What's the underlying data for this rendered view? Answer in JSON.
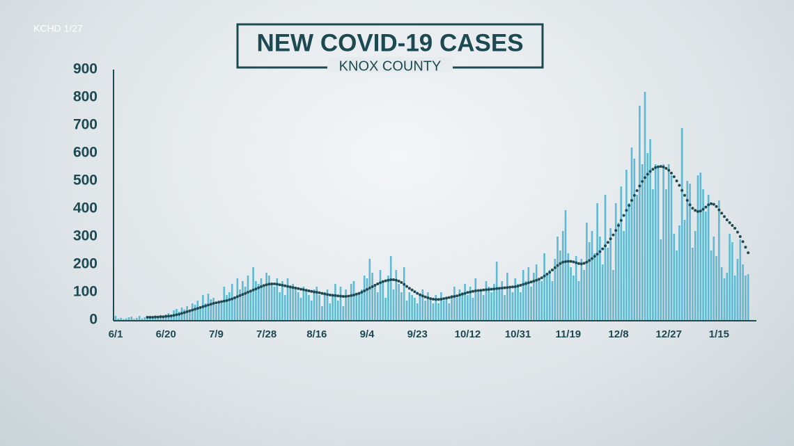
{
  "corner_label": "KCHD 1/27",
  "chart_data": {
    "type": "bar",
    "title": "NEW COVID-19 CASES",
    "subtitle": "KNOX COUNTY",
    "color": "#5fb9d2",
    "average_color": "#1d4a52",
    "ylim": [
      0,
      900
    ],
    "yticks": [
      0,
      100,
      200,
      300,
      400,
      500,
      600,
      700,
      800,
      900
    ],
    "categories": [
      "6/1",
      null,
      null,
      null,
      null,
      null,
      null,
      null,
      null,
      null,
      null,
      null,
      null,
      null,
      null,
      null,
      null,
      null,
      null,
      "6/20",
      null,
      null,
      null,
      null,
      null,
      null,
      null,
      null,
      null,
      null,
      null,
      null,
      null,
      null,
      null,
      null,
      null,
      null,
      "7/9",
      null,
      null,
      null,
      null,
      null,
      null,
      null,
      null,
      null,
      null,
      null,
      null,
      null,
      null,
      null,
      null,
      null,
      null,
      "7/28",
      null,
      null,
      null,
      null,
      null,
      null,
      null,
      null,
      null,
      null,
      null,
      null,
      null,
      null,
      null,
      null,
      null,
      null,
      "8/16",
      null,
      null,
      null,
      null,
      null,
      null,
      null,
      null,
      null,
      null,
      null,
      null,
      null,
      null,
      null,
      null,
      null,
      null,
      "9/4",
      null,
      null,
      null,
      null,
      null,
      null,
      null,
      null,
      null,
      null,
      null,
      null,
      null,
      null,
      null,
      null,
      null,
      null,
      "9/23",
      null,
      null,
      null,
      null,
      null,
      null,
      null,
      null,
      null,
      null,
      null,
      null,
      null,
      null,
      null,
      null,
      null,
      null,
      "10/12",
      null,
      null,
      null,
      null,
      null,
      null,
      null,
      null,
      null,
      null,
      null,
      null,
      null,
      null,
      null,
      null,
      null,
      null,
      "10/31",
      null,
      null,
      null,
      null,
      null,
      null,
      null,
      null,
      null,
      null,
      null,
      null,
      null,
      null,
      null,
      null,
      null,
      null,
      "11/19",
      null,
      null,
      null,
      null,
      null,
      null,
      null,
      null,
      null,
      null,
      null,
      null,
      null,
      null,
      null,
      null,
      null,
      null,
      "12/8",
      null,
      null,
      null,
      null,
      null,
      null,
      null,
      null,
      null,
      null,
      null,
      null,
      null,
      null,
      null,
      null,
      null,
      null,
      "12/27",
      null,
      null,
      null,
      null,
      null,
      null,
      null,
      null,
      null,
      null,
      null,
      null,
      null,
      null,
      null,
      null,
      null,
      null,
      "1/15",
      null,
      null,
      null,
      null,
      null,
      null,
      null,
      null,
      null,
      null,
      null
    ],
    "values": [
      15,
      5,
      8,
      3,
      6,
      10,
      12,
      4,
      8,
      15,
      6,
      10,
      14,
      8,
      12,
      16,
      10,
      18,
      12,
      20,
      25,
      15,
      35,
      40,
      30,
      45,
      38,
      50,
      30,
      60,
      55,
      70,
      45,
      90,
      60,
      95,
      75,
      80,
      55,
      70,
      60,
      120,
      90,
      100,
      130,
      80,
      150,
      110,
      140,
      120,
      160,
      100,
      190,
      140,
      130,
      150,
      120,
      170,
      160,
      130,
      120,
      150,
      100,
      140,
      90,
      150,
      120,
      130,
      110,
      100,
      80,
      120,
      110,
      90,
      70,
      110,
      120,
      90,
      50,
      100,
      110,
      60,
      90,
      130,
      70,
      120,
      50,
      110,
      80,
      130,
      140,
      90,
      100,
      110,
      160,
      150,
      220,
      170,
      130,
      100,
      180,
      140,
      80,
      160,
      230,
      110,
      180,
      130,
      100,
      190,
      70,
      100,
      90,
      80,
      60,
      90,
      110,
      70,
      100,
      80,
      60,
      90,
      60,
      100,
      70,
      80,
      60,
      90,
      120,
      80,
      110,
      100,
      130,
      90,
      120,
      80,
      150,
      100,
      110,
      90,
      140,
      120,
      100,
      130,
      210,
      110,
      140,
      90,
      170,
      120,
      100,
      150,
      130,
      100,
      180,
      140,
      190,
      120,
      170,
      200,
      150,
      140,
      240,
      160,
      180,
      140,
      220,
      300,
      250,
      320,
      395,
      240,
      190,
      160,
      230,
      140,
      220,
      180,
      350,
      280,
      320,
      240,
      420,
      300,
      200,
      450,
      260,
      330,
      180,
      420,
      350,
      480,
      320,
      540,
      420,
      620,
      580,
      450,
      770,
      560,
      820,
      600,
      650,
      470,
      560,
      550,
      290,
      560,
      470,
      560,
      520,
      310,
      250,
      340,
      690,
      360,
      500,
      490,
      260,
      320,
      520,
      530,
      470,
      390,
      450,
      250,
      300,
      230,
      430,
      190,
      150,
      170,
      310,
      280,
      160,
      220,
      290,
      200,
      160,
      165
    ],
    "moving_average": [
      null,
      null,
      null,
      null,
      null,
      null,
      null,
      null,
      null,
      null,
      null,
      null,
      10,
      10,
      10,
      11,
      11,
      12,
      12,
      13,
      14,
      15,
      17,
      19,
      21,
      24,
      27,
      30,
      33,
      36,
      39,
      42,
      45,
      48,
      51,
      54,
      57,
      60,
      62,
      64,
      66,
      68,
      70,
      73,
      76,
      80,
      84,
      88,
      92,
      96,
      100,
      104,
      108,
      112,
      116,
      120,
      124,
      127,
      129,
      130,
      130,
      129,
      127,
      125,
      123,
      121,
      119,
      117,
      115,
      113,
      111,
      109,
      107,
      105,
      103,
      101,
      100,
      98,
      96,
      94,
      92,
      90,
      89,
      88,
      87,
      86,
      85,
      85,
      86,
      88,
      90,
      93,
      96,
      100,
      105,
      110,
      115,
      120,
      125,
      130,
      134,
      138,
      141,
      143,
      145,
      145,
      143,
      140,
      135,
      128,
      121,
      114,
      108,
      102,
      96,
      91,
      87,
      83,
      80,
      77,
      75,
      74,
      74,
      75,
      77,
      79,
      81,
      83,
      85,
      87,
      90,
      93,
      96,
      99,
      101,
      103,
      105,
      106,
      107,
      108,
      109,
      110,
      111,
      112,
      113,
      114,
      115,
      116,
      117,
      118,
      119,
      120,
      122,
      125,
      128,
      131,
      134,
      137,
      140,
      143,
      147,
      152,
      158,
      165,
      172,
      180,
      188,
      196,
      203,
      208,
      210,
      211,
      211,
      209,
      206,
      203,
      202,
      204,
      208,
      214,
      221,
      229,
      237,
      246,
      256,
      267,
      279,
      292,
      306,
      322,
      340,
      358,
      376,
      394,
      412,
      430,
      448,
      465,
      482,
      498,
      512,
      524,
      534,
      542,
      548,
      551,
      552,
      550,
      545,
      538,
      528,
      515,
      500,
      484,
      466,
      448,
      430,
      414,
      402,
      394,
      390,
      392,
      398,
      406,
      414,
      418,
      416,
      408,
      396,
      384,
      372,
      360,
      350,
      340,
      330,
      316,
      300,
      282,
      262,
      242
    ]
  }
}
